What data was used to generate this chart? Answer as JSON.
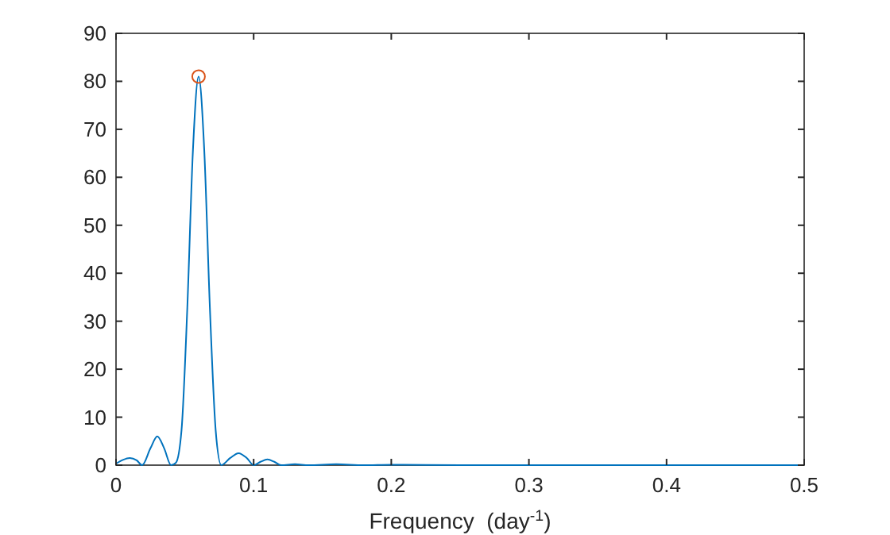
{
  "chart_data": {
    "type": "line",
    "xlabel": "Frequency  (day$^{-1}$)",
    "xlim": [
      0,
      0.5
    ],
    "xticks": [
      0,
      0.1,
      0.2,
      0.3,
      0.4,
      0.5
    ],
    "ylim": [
      0,
      90
    ],
    "yticks": [
      0,
      10,
      20,
      30,
      40,
      50,
      60,
      70,
      80,
      90
    ],
    "series": [
      {
        "color": "#0072bd",
        "x": [
          0,
          0.005,
          0.01,
          0.015,
          0.019,
          0.025,
          0.03,
          0.035,
          0.04,
          0.0435,
          0.0476,
          0.0518,
          0.0559,
          0.06,
          0.0641,
          0.0682,
          0.0724,
          0.0765,
          0.083,
          0.089,
          0.095,
          0.1,
          0.105,
          0.11,
          0.115,
          0.12,
          0.13,
          0.14,
          0.16,
          0.18,
          0.2,
          0.25,
          0.3,
          0.35,
          0.4,
          0.5
        ],
        "values": [
          0.3,
          1.1,
          1.5,
          1.0,
          0,
          3.5,
          6,
          3.5,
          0,
          0.5,
          7.3,
          32.8,
          65.7,
          81,
          65.7,
          32.8,
          7.3,
          0,
          1.5,
          2.5,
          1.5,
          0,
          0.7,
          1.2,
          0.7,
          0,
          0.2,
          0,
          0.2,
          0,
          0.1,
          0,
          0,
          0,
          0,
          0
        ]
      },
      {
        "type": "scatter",
        "color": "#d95319",
        "marker": "circle",
        "x": [
          0.06
        ],
        "values": [
          81
        ]
      }
    ]
  }
}
